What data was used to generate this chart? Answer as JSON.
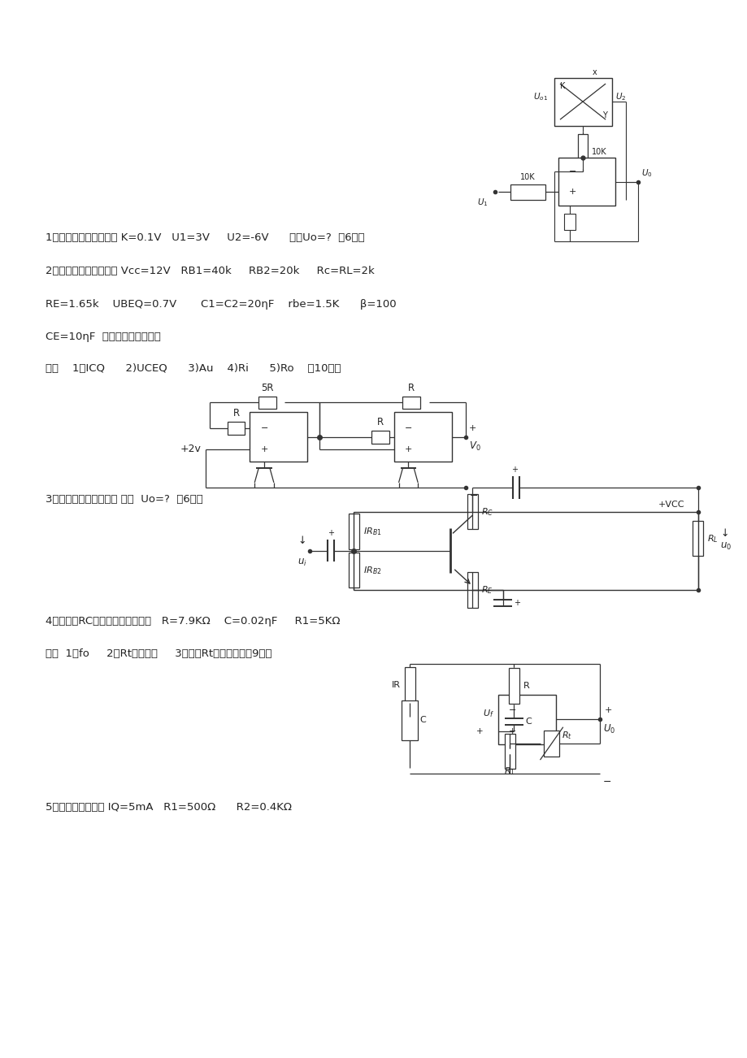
{
  "bg_color": "#ffffff",
  "text_color": "#222222",
  "line_color": "#333333",
  "page_width": 9.2,
  "page_height": 13.02,
  "line1": "1、已知：电路如图所示 K=0.1V   U1=3V     U2=-6V      求：Uo=?  （6分）",
  "line2": "2、已知：电路如图所示 Vcc=12V   RB1=40k     RB2=20k     Rc=RL=2k",
  "line3": "RE=1.65k    UBEQ=0.7V       C1=C2=20ηF    rbe=1.5K      β=100",
  "line4": "CE=10ηF  （取小数点后一位）",
  "line5": "求：    1）ICQ      2)UCEQ      3)Au    4)Ri      5)Ro    （10分）",
  "line6": "3、已知：电路如图所示 求：  Uo=?  （6分）",
  "line7": "4、已知：RC振荡电路如下图所示   R=7.9KΩ    C=0.02ηF     R1=5KΩ",
  "line8": "求：  1）fo     2）Rt冷态电阱     3）指明Rt的温度特性（9分）",
  "line9": "5、已知：电路如图 IQ=5mA   R1=500Ω      R2=0.4KΩ"
}
